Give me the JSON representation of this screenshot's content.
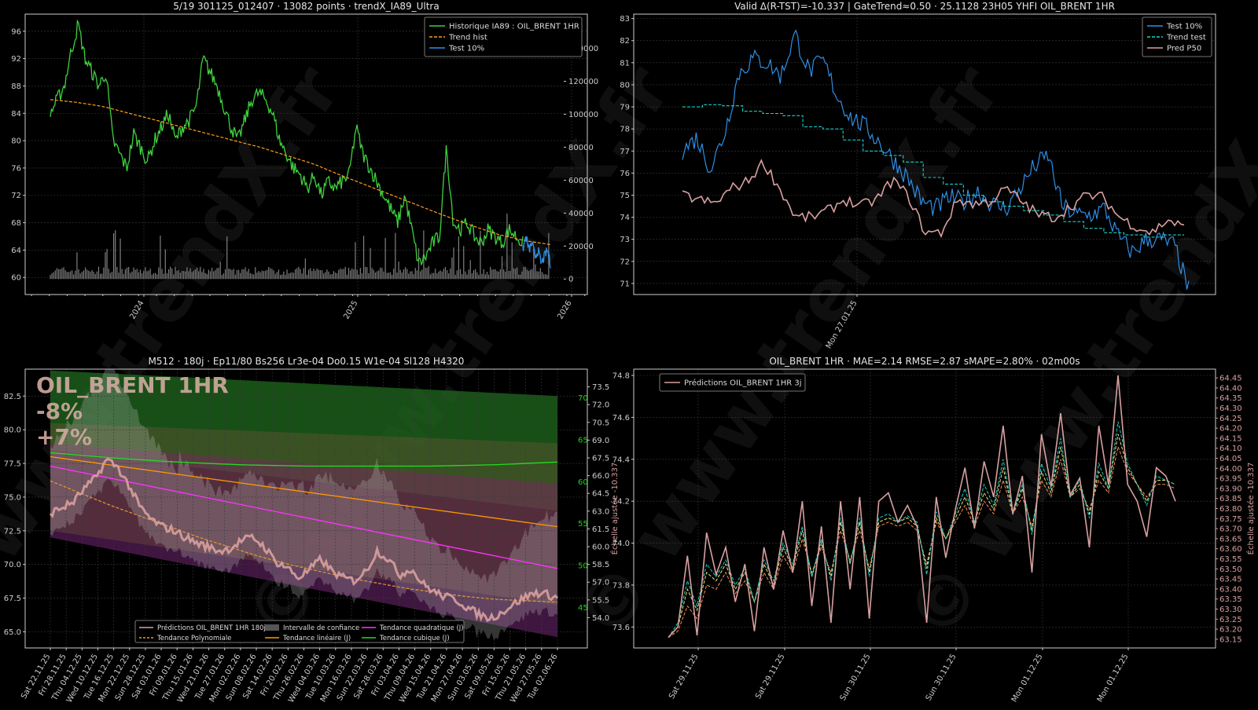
{
  "watermark": "© www.trendX.fr",
  "colors": {
    "background": "#000000",
    "axis": "#cccccc",
    "grid": "#3a3a3a",
    "hist_green": "#3ed23e",
    "test_blue": "#2e8fe6",
    "trend_orange": "#ff9f1a",
    "trend_test_cyan": "#19d2c8",
    "pred_pink": "#d8a0a0",
    "volume_gray": "#808080",
    "poly_trend": "#e69a2e",
    "linear_trend": "#ff9900",
    "quad_trend": "#ff33ff",
    "cubic_trend": "#22dd22",
    "conf_band": "#6a6a3a",
    "green_band": "#1f6a1f",
    "purple_band": "#5a1f5a"
  },
  "chart_data": [
    {
      "id": "history",
      "type": "line",
      "title": "5/19 301125_012407 · 13082 points · trendX_IA89_Ultra",
      "x_ticks": [
        "2024",
        "2025",
        "2026"
      ],
      "y_left": [
        60,
        64,
        68,
        72,
        76,
        80,
        84,
        88,
        92,
        96
      ],
      "y_right": [
        0,
        20000,
        40000,
        60000,
        80000,
        100000,
        120000,
        140000
      ],
      "ylim": [
        57.5,
        98.5
      ],
      "grid": true,
      "legend_position": "top-right",
      "series": [
        {
          "name": "Historique IA89 : OIL_BRENT 1HR",
          "color": "#3ed23e",
          "style": "solid",
          "values": [
            84,
            86,
            88,
            93,
            97,
            92,
            90,
            88,
            90,
            80,
            78,
            76,
            81,
            79,
            77,
            80,
            82,
            84,
            80,
            82,
            83,
            85,
            92,
            90,
            88,
            85,
            82,
            80,
            83,
            86,
            87,
            86,
            84,
            80,
            78,
            76,
            75,
            73,
            75,
            72,
            74,
            73,
            74,
            75,
            82,
            78,
            76,
            74,
            72,
            70,
            68,
            72,
            67,
            62,
            63,
            65,
            66,
            79,
            68,
            67,
            68,
            66,
            65,
            67,
            66,
            65,
            67,
            66,
            65
          ]
        },
        {
          "name": "Trend hist",
          "color": "#ff9f1a",
          "style": "dashed",
          "values": [
            86,
            85.6,
            85,
            84,
            83,
            82,
            81,
            80,
            79,
            77.8,
            76.6,
            75,
            73.5,
            72,
            70.5,
            69,
            67.6,
            66.3,
            65.4,
            64.8
          ]
        },
        {
          "name": "Test 10%",
          "color": "#2e8fe6",
          "style": "solid",
          "values": [
            64,
            66,
            64,
            65,
            63,
            64,
            62,
            63,
            64,
            62
          ]
        }
      ]
    },
    {
      "id": "validation",
      "type": "line",
      "title": "Valid Δ(R-TST)=-10.337 | GateTrend≈0.50 · 25.1128 23H05 YHFI OIL_BRENT 1HR",
      "x_ticks": [
        "Mon 27.01.25"
      ],
      "y_ticks": [
        71,
        72,
        73,
        74,
        75,
        76,
        77,
        78,
        79,
        80,
        81,
        82,
        83
      ],
      "ylim": [
        70.5,
        83.2
      ],
      "grid": true,
      "legend_position": "top-right",
      "series": [
        {
          "name": "Test 10%",
          "color": "#2e8fe6",
          "values": [
            77,
            77.6,
            76.2,
            77.8,
            80.5,
            81.2,
            81,
            80.4,
            82.3,
            80.6,
            81.1,
            79.5,
            78.5,
            78.1,
            77.4,
            76.6,
            75.8,
            74.7,
            74.4,
            74.9,
            74.7,
            75.2,
            74.6,
            74.4,
            75.3,
            76.3,
            76.8,
            74.5,
            74.1,
            74.1,
            74.4,
            73.1,
            72.4,
            73,
            73,
            72.7,
            70.7
          ]
        },
        {
          "name": "Trend test",
          "color": "#19d2c8",
          "values": [
            79,
            79.1,
            79.05,
            78.8,
            78.7,
            78.6,
            78.1,
            78,
            77.5,
            77,
            76.8,
            76.5,
            75.8,
            75.5,
            75,
            74.7,
            74.5,
            74.3,
            74.1,
            73.8,
            73.5,
            73.3,
            73.2,
            73.1,
            73.2
          ]
        },
        {
          "name": "Pred P50",
          "color": "#d8a0a0",
          "values": [
            75,
            74.8,
            74.6,
            75.3,
            75.6,
            76.5,
            75.3,
            74,
            74,
            74.3,
            74.8,
            74.5,
            74.8,
            75.7,
            74.9,
            73.3,
            73.3,
            74.8,
            74.6,
            74.7,
            75.3,
            74.7,
            74.1,
            74,
            74.5,
            75,
            74.9,
            74,
            73.6,
            73.3,
            73.9,
            73.5
          ]
        }
      ]
    },
    {
      "id": "forecast",
      "type": "line",
      "title": "M512 · 180j · Ep11/80 Bs256 Lr3e-04 Do0.15 W1e-04 Sl128 H4320",
      "overlay_text": [
        "OIL_BRENT 1HR",
        "-8%",
        "+7%"
      ],
      "y_left": [
        65.0,
        67.5,
        70.0,
        72.5,
        75.0,
        77.5,
        80.0,
        82.5
      ],
      "y_right": [
        54.0,
        55.5,
        57.0,
        58.5,
        60.0,
        61.5,
        63.0,
        64.5,
        66.0,
        67.5,
        69.0,
        70.5,
        72.0,
        73.5
      ],
      "y_right_label": "Échelle ajustée -10.337",
      "y_right_green": [
        45,
        50,
        55,
        60,
        65,
        70
      ],
      "ylim": [
        63.8,
        84.5
      ],
      "x_ticks": [
        "Sat 22.11.25",
        "Fri 28.11.25",
        "Thu 04.12.25",
        "Wed 10.12.25",
        "Tue 16.12.25",
        "Mon 22.12.25",
        "Sun 28.12.25",
        "Sat 03.01.26",
        "Fri 09.01.26",
        "Thu 15.01.26",
        "Wed 21.01.26",
        "Tue 27.01.26",
        "Mon 02.02.26",
        "Sun 08.02.26",
        "Sat 14.02.26",
        "Fri 20.02.26",
        "Thu 26.02.26",
        "Wed 04.03.26",
        "Tue 10.03.26",
        "Mon 16.03.26",
        "Sun 22.03.26",
        "Sat 28.03.26",
        "Fri 03.04.26",
        "Thu 09.04.26",
        "Wed 15.04.26",
        "Tue 21.04.26",
        "Mon 27.04.26",
        "Sun 03.05.26",
        "Sat 09.05.26",
        "Fri 15.05.26",
        "Thu 21.05.26",
        "Wed 27.05.26",
        "Tue 02.06.26"
      ],
      "grid": true,
      "legend_position": "bottom-center",
      "series": [
        {
          "name": "Prédictions OIL_BRENT 1HR 180j",
          "color": "#d8a0a0",
          "values": [
            73.8,
            74.2,
            74.6,
            75.6,
            76.4,
            77.8,
            77.2,
            75.8,
            74.2,
            73.3,
            72.8,
            72.5,
            72.0,
            71.6,
            71.3,
            71.0,
            71.2,
            71.8,
            72.0,
            71.3,
            70.2,
            69.8,
            69.0,
            69.6,
            70.4,
            69.5,
            69.0,
            68.8,
            69.5,
            71.0,
            70.4,
            69.2,
            69.7,
            68.6,
            68.0,
            67.6,
            67.4,
            66.8,
            66.3,
            66.0,
            66.4,
            67.0,
            67.5,
            67.9,
            67.8,
            67.5
          ]
        },
        {
          "name": "Tendance Polynomiale",
          "color": "#e69a2e",
          "values": [
            76.2,
            75.3,
            74.4,
            73.6,
            72.8,
            72.0,
            71.3,
            70.6,
            70.0,
            69.5,
            69.0,
            68.6,
            68.2,
            67.9,
            67.6,
            67.4,
            67.3,
            67.2
          ]
        },
        {
          "name": "Intervalle de confiance",
          "color": "#6a6a3a"
        },
        {
          "name": "Tendance linéaire (J)",
          "color": "#ff9900",
          "values": [
            78.0,
            72.8
          ]
        },
        {
          "name": "Tendance quadratique (J)",
          "color": "#ff33ff",
          "values": [
            77.3,
            69.7
          ]
        },
        {
          "name": "Tendance cubique (J)",
          "color": "#22dd22",
          "values": [
            78.3,
            77.9,
            77.6,
            77.4,
            77.3,
            77.3,
            77.3,
            77.4,
            77.6
          ]
        }
      ]
    },
    {
      "id": "predictions",
      "type": "line",
      "title": "OIL_BRENT 1HR · MAE=2.14 RMSE=2.87 sMAPE=2.80% · 02m00s",
      "y_left": [
        73.6,
        73.8,
        74.0,
        74.2,
        74.4,
        74.6,
        74.8
      ],
      "y_right": [
        63.15,
        63.2,
        63.25,
        63.3,
        63.35,
        63.4,
        63.45,
        63.5,
        63.55,
        63.6,
        63.65,
        63.7,
        63.75,
        63.8,
        63.85,
        63.9,
        63.95,
        64.0,
        64.05,
        64.1,
        64.15,
        64.2,
        64.25,
        64.3,
        64.35,
        64.4,
        64.45
      ],
      "y_right_label": "Échelle ajustée -10.337",
      "ylim": [
        73.5,
        74.83
      ],
      "x_ticks": [
        "Sat 29.11.25",
        "Sat 29.11.25",
        "Sun 30.11.25",
        "Sun 30.11.25",
        "Mon 01.12.25",
        "Mon 01.12.25"
      ],
      "grid": true,
      "legend_position": "top-left",
      "series": [
        {
          "name": "Prédictions OIL_BRENT 1HR 3j",
          "color": "#d8a0a0",
          "values": [
            73.55,
            73.6,
            73.94,
            73.56,
            74.05,
            73.85,
            73.98,
            73.72,
            73.9,
            73.58,
            73.98,
            73.78,
            74.06,
            73.86,
            74.2,
            73.7,
            74.08,
            73.62,
            74.2,
            73.78,
            74.22,
            73.64,
            74.2,
            74.24,
            74.1,
            74.18,
            74.08,
            73.62,
            74.22,
            73.93,
            74.16,
            74.36,
            74.07,
            74.39,
            74.22,
            74.56,
            74.14,
            74.32,
            73.86,
            74.52,
            74.27,
            74.62,
            74.23,
            74.31,
            73.98,
            74.56,
            74.28,
            74.8,
            74.28,
            74.2,
            74.03,
            74.36,
            74.32,
            74.2
          ]
        },
        {
          "name": "",
          "color": "#19d2c8",
          "values": [
            73.55,
            73.62,
            73.82,
            73.7,
            73.9,
            73.84,
            73.92,
            73.8,
            73.88,
            73.72,
            73.92,
            73.82,
            74.0,
            73.9,
            74.08,
            73.84,
            74.02,
            73.82,
            74.12,
            73.9,
            74.12,
            73.84,
            74.12,
            74.14,
            74.1,
            74.13,
            74.1,
            73.85,
            74.15,
            74.02,
            74.14,
            74.26,
            74.1,
            74.28,
            74.18,
            74.4,
            74.14,
            74.28,
            74.04,
            74.38,
            74.26,
            74.5,
            74.22,
            74.3,
            74.12,
            74.38,
            74.26,
            74.58,
            74.38,
            74.28,
            74.18,
            74.32,
            74.3,
            74.28
          ]
        },
        {
          "name": "",
          "color": "#e8e87a",
          "values": [
            73.55,
            73.6,
            73.78,
            73.68,
            73.86,
            73.82,
            73.9,
            73.78,
            73.86,
            73.72,
            73.9,
            73.8,
            73.98,
            73.88,
            74.06,
            73.84,
            74.0,
            73.84,
            74.1,
            73.9,
            74.1,
            73.86,
            74.1,
            74.12,
            74.1,
            74.12,
            74.08,
            73.88,
            74.12,
            74.02,
            74.12,
            74.22,
            74.1,
            74.24,
            74.16,
            74.36,
            74.14,
            74.26,
            74.06,
            74.34,
            74.24,
            74.46,
            74.22,
            74.28,
            74.14,
            74.34,
            74.26,
            74.52,
            74.36,
            74.28,
            74.2,
            74.3,
            74.3,
            74.28
          ]
        },
        {
          "name": "",
          "color": "#ff8a5a",
          "values": [
            73.55,
            73.58,
            73.7,
            73.64,
            73.8,
            73.78,
            73.86,
            73.76,
            73.82,
            73.72,
            73.86,
            73.78,
            73.94,
            73.86,
            74.02,
            73.86,
            73.98,
            73.86,
            74.06,
            73.92,
            74.06,
            73.88,
            74.08,
            74.1,
            74.08,
            74.1,
            74.06,
            73.9,
            74.1,
            74.02,
            74.1,
            74.18,
            74.08,
            74.2,
            74.14,
            74.3,
            74.14,
            74.22,
            74.08,
            74.3,
            74.22,
            74.4,
            74.22,
            74.26,
            74.16,
            74.3,
            74.24,
            74.46,
            74.34,
            74.28,
            74.22,
            74.28,
            74.28,
            74.26
          ]
        }
      ]
    }
  ]
}
